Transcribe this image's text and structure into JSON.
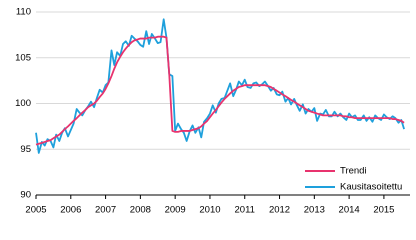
{
  "chart_data": {
    "type": "line",
    "x": [
      2005,
      2005.08,
      2005.17,
      2005.25,
      2005.33,
      2005.42,
      2005.5,
      2005.58,
      2005.67,
      2005.75,
      2005.83,
      2005.92,
      2006,
      2006.08,
      2006.17,
      2006.25,
      2006.33,
      2006.42,
      2006.5,
      2006.58,
      2006.67,
      2006.75,
      2006.83,
      2006.92,
      2007,
      2007.08,
      2007.17,
      2007.25,
      2007.33,
      2007.42,
      2007.5,
      2007.58,
      2007.67,
      2007.75,
      2007.83,
      2007.92,
      2008,
      2008.08,
      2008.17,
      2008.25,
      2008.33,
      2008.42,
      2008.5,
      2008.58,
      2008.67,
      2008.75,
      2008.83,
      2008.92,
      2009,
      2009.08,
      2009.17,
      2009.25,
      2009.33,
      2009.42,
      2009.5,
      2009.58,
      2009.67,
      2009.75,
      2009.83,
      2009.92,
      2010,
      2010.08,
      2010.17,
      2010.25,
      2010.33,
      2010.42,
      2010.5,
      2010.58,
      2010.67,
      2010.75,
      2010.83,
      2010.92,
      2011,
      2011.08,
      2011.17,
      2011.25,
      2011.33,
      2011.42,
      2011.5,
      2011.58,
      2011.67,
      2011.75,
      2011.83,
      2011.92,
      2012,
      2012.08,
      2012.17,
      2012.25,
      2012.33,
      2012.42,
      2012.5,
      2012.58,
      2012.67,
      2012.75,
      2012.83,
      2012.92,
      2013,
      2013.08,
      2013.17,
      2013.25,
      2013.33,
      2013.42,
      2013.5,
      2013.58,
      2013.67,
      2013.75,
      2013.83,
      2013.92,
      2014,
      2014.08,
      2014.17,
      2014.25,
      2014.33,
      2014.42,
      2014.5,
      2014.58,
      2014.67,
      2014.75,
      2014.83,
      2014.92,
      2015,
      2015.08,
      2015.17,
      2015.25,
      2015.33,
      2015.42,
      2015.5,
      2015.58
    ],
    "series": [
      {
        "name": "Trendi",
        "color": "#e8336e",
        "values": [
          95.5,
          95.6,
          95.7,
          95.8,
          95.9,
          96.0,
          96.2,
          96.4,
          96.6,
          96.9,
          97.2,
          97.5,
          97.8,
          98.1,
          98.4,
          98.7,
          99.0,
          99.3,
          99.6,
          99.8,
          100.0,
          100.3,
          100.7,
          101.1,
          101.6,
          102.2,
          103.0,
          103.8,
          104.5,
          105.1,
          105.6,
          106.0,
          106.4,
          106.7,
          106.9,
          107.0,
          107.1,
          107.1,
          107.1,
          107.2,
          107.2,
          107.2,
          107.3,
          107.3,
          107.3,
          107.2,
          103.2,
          97.0,
          96.9,
          96.9,
          97.0,
          97.0,
          97.0,
          97.0,
          97.1,
          97.2,
          97.3,
          97.5,
          97.8,
          98.1,
          98.5,
          98.9,
          99.3,
          99.7,
          100.1,
          100.5,
          100.8,
          101.1,
          101.4,
          101.6,
          101.8,
          101.9,
          102.0,
          102.0,
          102.0,
          102.0,
          102.0,
          102.0,
          102.0,
          102.0,
          101.9,
          101.8,
          101.6,
          101.4,
          101.2,
          101.0,
          100.8,
          100.6,
          100.4,
          100.2,
          100.0,
          99.8,
          99.6,
          99.4,
          99.2,
          99.1,
          99.0,
          98.9,
          98.8,
          98.7,
          98.7,
          98.7,
          98.7,
          98.7,
          98.7,
          98.7,
          98.6,
          98.6,
          98.5,
          98.5,
          98.4,
          98.4,
          98.4,
          98.4,
          98.4,
          98.4,
          98.4,
          98.4,
          98.4,
          98.4,
          98.4,
          98.4,
          98.4,
          98.3,
          98.3,
          98.2,
          98.1,
          97.9
        ]
      },
      {
        "name": "Kausitasoitettu",
        "color": "#1ea0dc",
        "values": [
          96.8,
          94.6,
          95.8,
          95.4,
          96.1,
          95.9,
          95.2,
          96.6,
          95.9,
          96.8,
          97.3,
          96.4,
          97.1,
          97.8,
          99.4,
          99.0,
          98.7,
          99.3,
          99.7,
          100.2,
          99.6,
          100.6,
          101.5,
          101.2,
          102.0,
          102.3,
          105.8,
          104.2,
          105.6,
          105.2,
          106.5,
          106.8,
          106.3,
          107.4,
          107.1,
          106.8,
          106.4,
          106.2,
          107.9,
          106.5,
          107.6,
          107.1,
          106.6,
          106.7,
          109.2,
          107.2,
          103.2,
          103.0,
          97.0,
          97.8,
          97.2,
          96.8,
          95.9,
          97.0,
          97.6,
          96.8,
          97.4,
          96.3,
          98.0,
          98.4,
          98.9,
          99.8,
          99.0,
          100.0,
          100.5,
          100.6,
          101.4,
          102.2,
          100.8,
          101.5,
          102.4,
          102.0,
          102.6,
          101.8,
          101.7,
          102.2,
          102.3,
          101.9,
          102.1,
          102.4,
          101.9,
          101.4,
          101.7,
          101.0,
          100.9,
          101.3,
          100.2,
          100.6,
          99.9,
          100.5,
          99.8,
          99.2,
          99.9,
          98.9,
          99.4,
          99.1,
          99.5,
          98.1,
          98.9,
          98.8,
          99.3,
          98.6,
          98.6,
          99.1,
          98.6,
          98.9,
          98.5,
          98.2,
          98.9,
          98.5,
          98.7,
          98.2,
          98.2,
          98.7,
          98.1,
          98.5,
          98.0,
          98.7,
          98.4,
          98.2,
          98.8,
          98.5,
          98.3,
          98.6,
          98.4,
          97.9,
          98.2,
          97.2
        ]
      }
    ],
    "xlim": [
      2005,
      2015.75
    ],
    "xticks": [
      2005,
      2006,
      2007,
      2008,
      2009,
      2010,
      2011,
      2012,
      2013,
      2014,
      2015
    ],
    "ylim": [
      90,
      110
    ],
    "yticks": [
      90,
      95,
      100,
      105,
      110
    ],
    "grid": true,
    "legend": "lower right"
  }
}
